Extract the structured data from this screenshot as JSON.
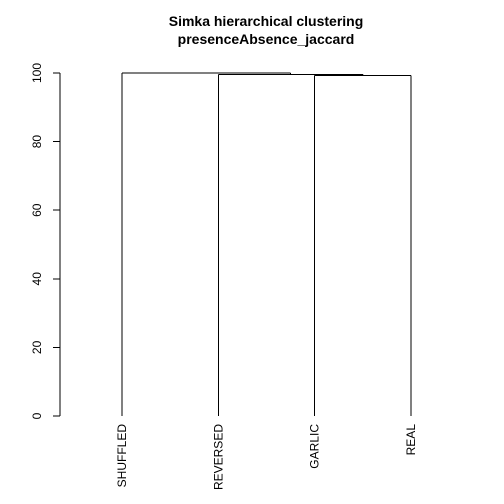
{
  "chart_data": {
    "type": "dendrogram",
    "title": "Simka hierarchical clustering",
    "subtitle": "presenceAbsence_jaccard",
    "xlabel": "",
    "ylabel": "",
    "ylim": [
      0,
      100
    ],
    "y_ticks": [
      "0",
      "20",
      "40",
      "60",
      "80",
      "100"
    ],
    "y_tick_values": [
      0,
      20,
      40,
      60,
      80,
      100
    ],
    "leaves": [
      "SHUFFLED",
      "REVERSED",
      "GARLIC",
      "REAL"
    ],
    "merges": [
      {
        "left": "GARLIC",
        "right": "REAL",
        "height": 99.3
      },
      {
        "left": "REVERSED",
        "right": "GARLIC+REAL",
        "height": 99.6
      },
      {
        "left": "SHUFFLED",
        "right": "REVERSED+GARLIC+REAL",
        "height": 100.0
      }
    ],
    "grid": false,
    "legend": "none",
    "line_color": "#000000"
  }
}
